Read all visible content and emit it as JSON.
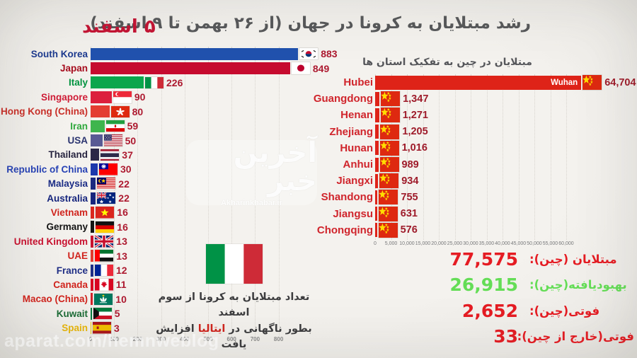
{
  "page": {
    "title": "رشد مبتلایان به کرونا در جهان (از ۲۶ بهمن تا ۹ اسفند)",
    "date_label": "۵ اسفند",
    "background": "#f2f0ec",
    "accent_red": "#c41333"
  },
  "watermarks": {
    "center_logo": "آخرین خبر",
    "center_sub": "Akharinkhabar.ir",
    "bottom_left": "aparat.com/hemnweblog"
  },
  "chart_data": [
    {
      "type": "bar",
      "orientation": "horizontal",
      "title": "",
      "xlim": [
        0,
        800
      ],
      "axis_ticks": [
        "0",
        "100",
        "200",
        "300",
        "400",
        "500",
        "600",
        "700",
        "800"
      ],
      "grid": true,
      "value_color": "#ad1a30",
      "rows": [
        {
          "label": "South Korea",
          "value": 883,
          "display": "883",
          "flag": "south-korea",
          "bar_color": "#2152ae",
          "label_color": "#1d3a8f"
        },
        {
          "label": "Japan",
          "value": 849,
          "display": "849",
          "flag": "japan",
          "bar_color": "#c60b2f",
          "label_color": "#a60d1e"
        },
        {
          "label": "Italy",
          "value": 226,
          "display": "226",
          "flag": "italy",
          "bar_color": "#0ba64c",
          "label_color": "#00933f"
        },
        {
          "label": "Singapore",
          "value": 90,
          "display": "90",
          "flag": "singapore",
          "bar_color": "#dc1f3d",
          "label_color": "#cf1d37"
        },
        {
          "label": "Hong Kong (China)",
          "value": 80,
          "display": "80",
          "flag": "hong-kong",
          "bar_color": "#e43d32",
          "label_color": "#c92f28"
        },
        {
          "label": "Iran",
          "value": 59,
          "display": "59",
          "flag": "iran",
          "bar_color": "#3eb54d",
          "label_color": "#2fa83c"
        },
        {
          "label": "USA",
          "value": 50,
          "display": "50",
          "flag": "usa",
          "bar_color": "#585a94",
          "label_color": "#2c3570"
        },
        {
          "label": "Thailand",
          "value": 37,
          "display": "37",
          "flag": "thailand",
          "bar_color": "#2a2747",
          "label_color": "#27243f"
        },
        {
          "label": "Republic of China",
          "value": 30,
          "display": "30",
          "flag": "taiwan",
          "bar_color": "#1c39ac",
          "label_color": "#2742b5"
        },
        {
          "label": "Malaysia",
          "value": 22,
          "display": "22",
          "flag": "malaysia",
          "bar_color": "#1b2a80",
          "label_color": "#1c2d86"
        },
        {
          "label": "Australia",
          "value": 22,
          "display": "22",
          "flag": "australia",
          "bar_color": "#17257e",
          "label_color": "#16257d"
        },
        {
          "label": "Vietnam",
          "value": 16,
          "display": "16",
          "flag": "vietnam",
          "bar_color": "#da251d",
          "label_color": "#d0241d"
        },
        {
          "label": "Germany",
          "value": 16,
          "display": "16",
          "flag": "germany",
          "bar_color": "#141414",
          "label_color": "#141414"
        },
        {
          "label": "United Kingdom",
          "value": 13,
          "display": "13",
          "flag": "uk",
          "bar_color": "#c8102e",
          "label_color": "#c8102e"
        },
        {
          "label": "UAE",
          "value": 13,
          "display": "13",
          "flag": "uae",
          "bar_color": "#e23b30",
          "label_color": "#d0241d"
        },
        {
          "label": "France",
          "value": 12,
          "display": "12",
          "flag": "france",
          "bar_color": "#1f2e85",
          "label_color": "#1f2e85"
        },
        {
          "label": "Canada",
          "value": 11,
          "display": "11",
          "flag": "canada",
          "bar_color": "#d80621",
          "label_color": "#d0241d"
        },
        {
          "label": "Macao (China)",
          "value": 10,
          "display": "10",
          "flag": "macao",
          "bar_color": "#d2232a",
          "label_color": "#d0241d"
        },
        {
          "label": "Kuwait",
          "value": 5,
          "display": "5",
          "flag": "kuwait",
          "bar_color": "#007a3d",
          "label_color": "#1c6b35"
        },
        {
          "label": "Spain",
          "value": 3,
          "display": "3",
          "flag": "spain",
          "bar_color": "#f1bf00",
          "label_color": "#e6b40a"
        }
      ]
    },
    {
      "type": "bar",
      "orientation": "horizontal",
      "title": "مبتلایان در چین به تفکیک استان ها",
      "xlim": [
        0,
        60000
      ],
      "axis_ticks": [
        "0",
        "5,000",
        "10,000",
        "15,000",
        "20,000",
        "25,000",
        "30,000",
        "35,000",
        "40,000",
        "45,000",
        "50,000",
        "55,000",
        "60,000"
      ],
      "grid": true,
      "bar_color": "#de2318",
      "label_color": "#d0252c",
      "value_color": "#9e1b2a",
      "rows": [
        {
          "label": "Hubei",
          "value": 64704,
          "display": "64,704",
          "flag": "china",
          "inner_label": "Wuhan"
        },
        {
          "label": "Guangdong",
          "value": 1347,
          "display": "1,347",
          "flag": "china"
        },
        {
          "label": "Henan",
          "value": 1271,
          "display": "1,271",
          "flag": "china"
        },
        {
          "label": "Zhejiang",
          "value": 1205,
          "display": "1,205",
          "flag": "china"
        },
        {
          "label": "Hunan",
          "value": 1016,
          "display": "1,016",
          "flag": "china"
        },
        {
          "label": "Anhui",
          "value": 989,
          "display": "989",
          "flag": "china"
        },
        {
          "label": "Jiangxi",
          "value": 934,
          "display": "934",
          "flag": "china"
        },
        {
          "label": "Shandong",
          "value": 755,
          "display": "755",
          "flag": "china"
        },
        {
          "label": "Jiangsu",
          "value": 631,
          "display": "631",
          "flag": "china"
        },
        {
          "label": "Chongqing",
          "value": 576,
          "display": "576",
          "flag": "china"
        }
      ]
    }
  ],
  "stats": [
    {
      "label": "مبتلایان (چین):",
      "value": "77,575",
      "color": "#e51c23"
    },
    {
      "label": "بهبودیافته(چین):",
      "value": "26,915",
      "color": "#64dd56"
    },
    {
      "label": "فوتی(چین):",
      "value": "2,652",
      "color": "#e51c23"
    },
    {
      "label": "فوتی(خارج از چین):",
      "value": "33",
      "color": "#e51c23"
    }
  ],
  "annotation": {
    "flag": "italy",
    "line1": "تعداد مبتلایان به کرونا از سوم اسفند",
    "line2_before": "بطور ناگهانی در ",
    "line2_highlight": "ایتالیا",
    "line2_after": " افزایش یافت",
    "highlight_color": "#d0241d"
  }
}
